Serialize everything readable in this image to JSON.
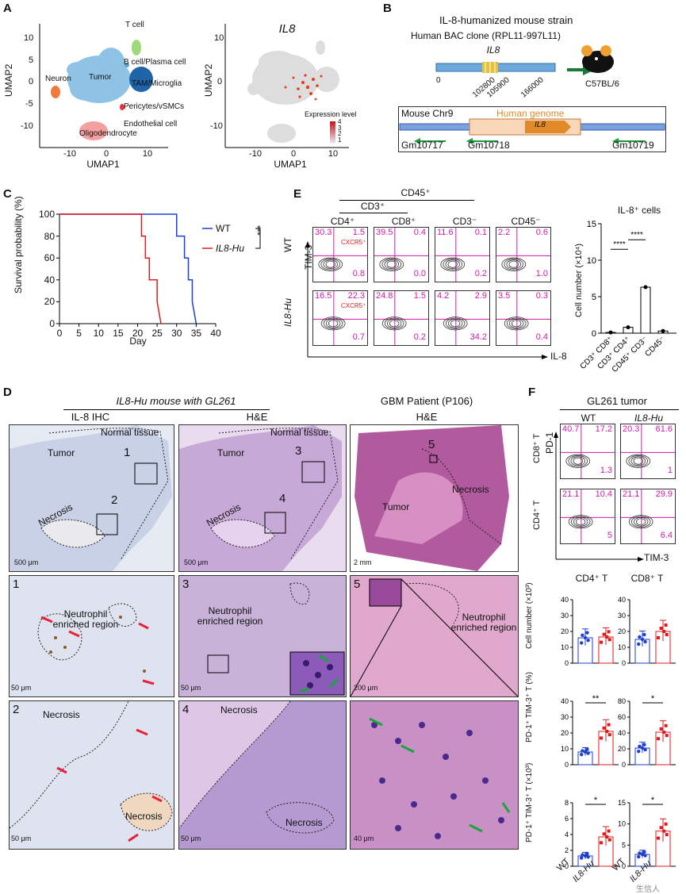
{
  "colors": {
    "tumor": "#8ec3e6",
    "neuron": "#f07a3a",
    "tcell": "#9fd87a",
    "tam": "#1f64a8",
    "vsmc": "#e8323c",
    "oligo": "#f4a0a0",
    "wt": "#1f3fcf",
    "hu": "#e01b1b",
    "magenta": "#d11aa8",
    "arrow_red": "#e8213d",
    "arrow_green": "#18a53a",
    "he_purple": "#b497d0",
    "he_bg": "#e8d8ee",
    "ihc_bg": "#e4e8f1"
  },
  "panels": {
    "A": "A",
    "B": "B",
    "C": "C",
    "D": "D",
    "E": "E",
    "F": "F"
  },
  "panelA": {
    "cluster_labels": {
      "tcell": "T cell",
      "bcell": "B cell/Plasma cell",
      "tumor": "Tumor",
      "neuron": "Neuron",
      "tam": "TAM/Microglia",
      "vsmc": "Pericytes/vSMCs",
      "endo": "Endothelial cell",
      "oligo": "Oligodendrocyte"
    },
    "xlabel": "UMAP1",
    "ylabel": "UMAP2",
    "xticks": [
      "-10",
      "0",
      "10"
    ],
    "yticks": [
      "10",
      "5",
      "0",
      "-5",
      "-10"
    ],
    "gene_title": "IL8",
    "legend_title": "Expression level",
    "legend_ticks": [
      "4",
      "3",
      "2",
      "1"
    ]
  },
  "panelB": {
    "title": "IL-8-humanized mouse strain",
    "bac": "Human BAC clone (RPL11-997L11)",
    "gene": "IL8",
    "pos0": "0",
    "pos1": "102800",
    "pos2": "105900",
    "pos3": "166000",
    "strain": "C57BL/6",
    "chr": "Mouse Chr9",
    "human": "Human genome",
    "insert": "IL8",
    "genes": [
      "Gm10717",
      "Gm10718",
      "Gm10719"
    ]
  },
  "panelC": {
    "ylabel": "Survival probability (%)",
    "xlabel": "Day",
    "yticks": [
      "100",
      "80",
      "60",
      "40",
      "20",
      "0"
    ],
    "xticks": [
      "0",
      "5",
      "10",
      "15",
      "20",
      "25",
      "30",
      "35",
      "40"
    ],
    "legend": {
      "wt": "WT",
      "hu": "IL8-Hu"
    },
    "sig": "***",
    "chart_data": {
      "type": "line",
      "title": "",
      "xlabel": "Day",
      "ylabel": "Survival probability (%)",
      "xlim": [
        0,
        40
      ],
      "ylim": [
        0,
        100
      ],
      "series": [
        {
          "name": "WT",
          "x": [
            0,
            30,
            30,
            32,
            32,
            33,
            33,
            34,
            34,
            35
          ],
          "y": [
            100,
            100,
            80,
            80,
            60,
            60,
            40,
            40,
            20,
            0
          ]
        },
        {
          "name": "IL8-Hu",
          "x": [
            0,
            21,
            21,
            22,
            22,
            23,
            23,
            25,
            25,
            26
          ],
          "y": [
            100,
            100,
            80,
            80,
            60,
            60,
            40,
            40,
            20,
            0
          ]
        }
      ]
    }
  },
  "panelE": {
    "cd45": "CD45⁺",
    "cd3": "CD3⁺",
    "cols": [
      "CD4⁺",
      "CD8⁺",
      "CD3⁻",
      "CD45⁻"
    ],
    "rows": [
      "WT",
      "IL8-Hu"
    ],
    "yaxis": "TIM-3",
    "xaxis": "IL-8",
    "cxcr5": "CXCR5⁺",
    "quads": [
      [
        [
          "30.3",
          "1.5",
          "0.8"
        ],
        [
          "39.5",
          "0.4",
          "0.0"
        ],
        [
          "11.6",
          "0.1",
          "0.2"
        ],
        [
          "2.2",
          "0.6",
          "1.0"
        ]
      ],
      [
        [
          "16.5",
          "22.3",
          "0.7"
        ],
        [
          "24.8",
          "1.5",
          "0.2"
        ],
        [
          "4.2",
          "2.9",
          "34.2"
        ],
        [
          "3.5",
          "0.3",
          "0.4"
        ]
      ]
    ],
    "bar_title": "IL-8⁺ cells",
    "bar_ylabel": "Cell number (×10⁴)",
    "bar_yticks": [
      "15",
      "10",
      "5",
      "0"
    ],
    "bar_sig": [
      "****",
      "****"
    ],
    "chart_data": {
      "type": "bar",
      "title": "IL-8⁺ cells",
      "ylabel": "Cell number (×10⁴)",
      "ylim": [
        0,
        15
      ],
      "categories": [
        "CD3⁺ CD8⁺",
        "CD3⁺ CD4⁺",
        "CD45⁺ CD3⁻",
        "CD45⁻"
      ],
      "values": [
        0.1,
        0.8,
        6.3,
        0.3
      ]
    }
  },
  "panelD": {
    "title_mouse": "IL8-Hu mouse with GL261",
    "title_pt": "GBM Patient (P106)",
    "sub": [
      "IL-8 IHC",
      "H&E",
      "H&E"
    ],
    "labels": {
      "normal": "Normal tissue",
      "tumor": "Tumor",
      "necrosis": "Necrosis",
      "neut": "Neutrophil enriched region"
    },
    "scales": [
      "500 μm",
      "500 μm",
      "2 mm",
      "50 μm",
      "50 μm",
      "200 μm",
      "50 μm",
      "50 μm",
      "40 μm"
    ],
    "boxes": [
      "1",
      "2",
      "3",
      "4",
      "5"
    ]
  },
  "panelF": {
    "title": "GL261 tumor",
    "cols": [
      "WT",
      "IL8-Hu"
    ],
    "rows": [
      "CD8⁺ T",
      "CD4⁺ T"
    ],
    "yaxis": "PD-1",
    "xaxis": "TIM-3",
    "quads": [
      [
        [
          "40.7",
          "17.2",
          "1.3"
        ],
        [
          "20.3",
          "61.6",
          "1"
        ]
      ],
      [
        [
          "21.1",
          "10.4",
          "5"
        ],
        [
          "21.1",
          "29.9",
          "6.4"
        ]
      ]
    ],
    "chart_titles": [
      "CD4⁺ T",
      "CD8⁺ T"
    ],
    "ylabels": [
      "Cell number (×10³)",
      "PD-1⁺ TIM-3⁺ T (%)",
      "PD-1⁺ TIM-3⁺ T (×10³)"
    ],
    "xcats": [
      "WT",
      "IL8-Hu"
    ],
    "chart_data": [
      {
        "type": "bar",
        "title": "CD4⁺ T",
        "ylabel": "Cell number (×10³)",
        "categories": [
          "WT",
          "IL8-Hu"
        ],
        "values": [
          16,
          16.5
        ],
        "ylim": [
          0,
          40
        ],
        "yticks": [
          "0",
          "10",
          "20",
          "30",
          "40"
        ],
        "sig": ""
      },
      {
        "type": "bar",
        "title": "CD8⁺ T",
        "ylabel": "Cell number (×10³)",
        "categories": [
          "WT",
          "IL8-Hu"
        ],
        "values": [
          15,
          20
        ],
        "ylim": [
          0,
          40
        ],
        "yticks": [
          "0",
          "10",
          "20",
          "30",
          "40"
        ],
        "sig": ""
      },
      {
        "type": "bar",
        "title": "",
        "ylabel": "PD-1⁺ TIM-3⁺ T (%)",
        "categories": [
          "WT",
          "IL8-Hu"
        ],
        "values": [
          8,
          21
        ],
        "ylim": [
          0,
          40
        ],
        "yticks": [
          "0",
          "10",
          "20",
          "30",
          "40"
        ],
        "sig": "**"
      },
      {
        "type": "bar",
        "title": "",
        "ylabel": "PD-1⁺ TIM-3⁺ T (%)",
        "categories": [
          "WT",
          "IL8-Hu"
        ],
        "values": [
          21,
          41
        ],
        "ylim": [
          0,
          80
        ],
        "yticks": [
          "0",
          "20",
          "40",
          "60",
          "80"
        ],
        "sig": "*"
      },
      {
        "type": "bar",
        "title": "",
        "ylabel": "PD-1⁺ TIM-3⁺ T (×10³)",
        "categories": [
          "WT",
          "IL8-Hu"
        ],
        "values": [
          1.3,
          3.7
        ],
        "ylim": [
          0,
          8
        ],
        "yticks": [
          "0",
          "2",
          "4",
          "6",
          "8"
        ],
        "sig": "*"
      },
      {
        "type": "bar",
        "title": "",
        "ylabel": "PD-1⁺ TIM-3⁺ T (×10³)",
        "categories": [
          "WT",
          "IL8-Hu"
        ],
        "values": [
          2.8,
          8.3
        ],
        "ylim": [
          0,
          15
        ],
        "yticks": [
          "0",
          "5",
          "10",
          "15"
        ],
        "sig": "*"
      }
    ]
  },
  "watermark": "生信人"
}
